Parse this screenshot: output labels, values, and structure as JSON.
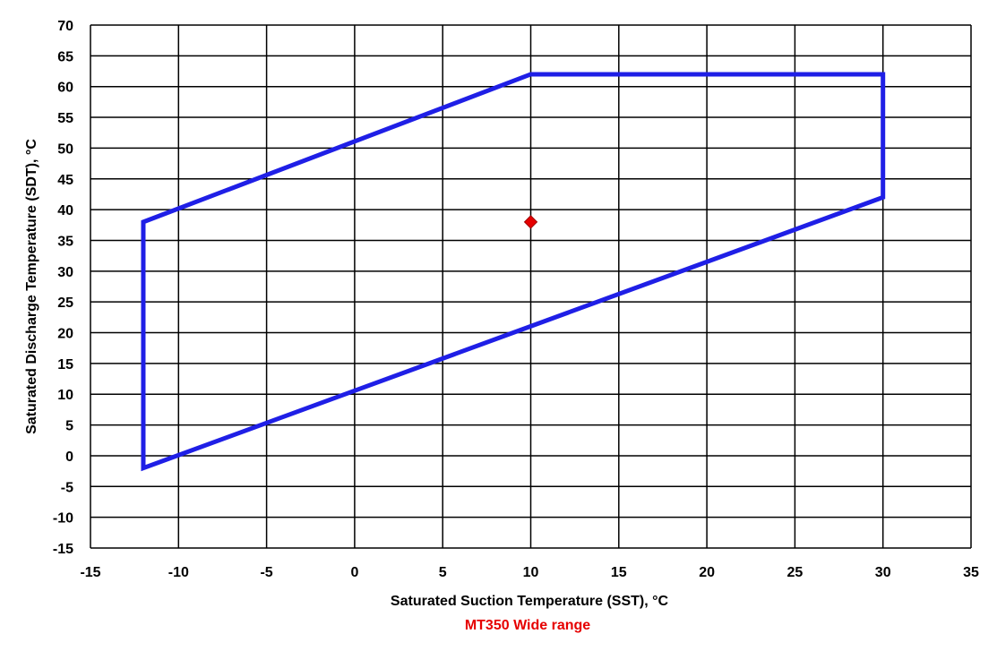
{
  "chart_data": {
    "type": "scatter",
    "xlabel": "Saturated Suction Temperature (SST), °C",
    "ylabel": "Saturated Discharge Temperature (SDT), °C",
    "subtitle": "MT350 Wide range",
    "xlim": [
      -15,
      35
    ],
    "ylim": [
      -15,
      70
    ],
    "x_ticks": [
      -15,
      -10,
      -5,
      0,
      5,
      10,
      15,
      20,
      25,
      30,
      35
    ],
    "y_ticks": [
      -15,
      -10,
      -5,
      0,
      5,
      10,
      15,
      20,
      25,
      30,
      35,
      40,
      45,
      50,
      55,
      60,
      65,
      70
    ],
    "x_tick_labels": [
      "-15",
      "-10",
      "-5",
      "0",
      "5",
      "10",
      "15",
      "20",
      "25",
      "30",
      "35"
    ],
    "y_tick_labels": [
      "-15",
      "-10",
      "-5",
      "0",
      "5",
      "10",
      "15",
      "20",
      "25",
      "30",
      "35",
      "40",
      "45",
      "50",
      "55",
      "60",
      "65",
      "70"
    ],
    "grid": true,
    "series": [
      {
        "kind": "envelope",
        "points": [
          {
            "x": -12,
            "y": 38
          },
          {
            "x": 10,
            "y": 62
          },
          {
            "x": 30,
            "y": 62
          },
          {
            "x": 30,
            "y": 42
          },
          {
            "x": -12,
            "y": -2
          }
        ],
        "color": "#1f1fe6"
      },
      {
        "kind": "marker",
        "points": [
          {
            "x": 10,
            "y": 38
          }
        ],
        "color": "#e60000"
      }
    ],
    "subtitle_color": "#e60000"
  }
}
